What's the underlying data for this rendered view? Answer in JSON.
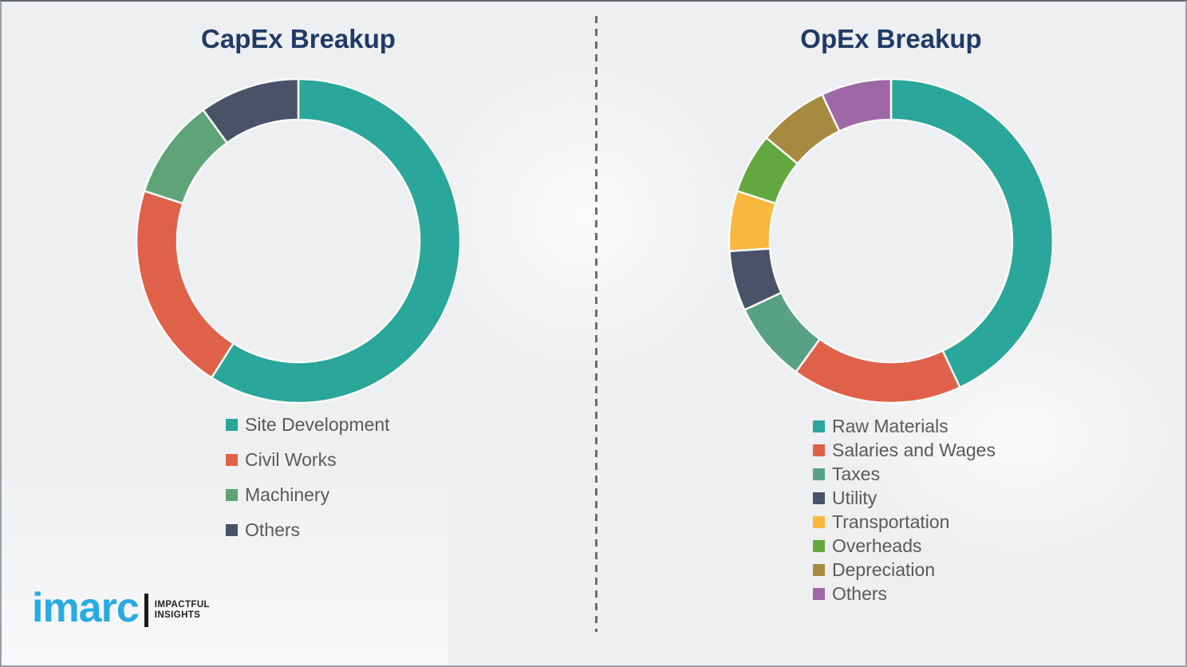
{
  "page": {
    "background_color": "#edeff0",
    "divider_color": "#6a6c6e",
    "title_color": "#203a66",
    "legend_text_color": "#5a5a5a",
    "slice_separator_color": "#fbfbf9"
  },
  "chart_data": [
    {
      "type": "pie",
      "variant": "donut",
      "title": "CapEx Breakup",
      "labels": [
        "Site Development",
        "Civil Works",
        "Machinery",
        "Others"
      ],
      "values": [
        59,
        21,
        10,
        10
      ],
      "unit": "%",
      "values_estimated_from_arc_angles": true,
      "colors": [
        "#2aa69a",
        "#e0614a",
        "#5ea477",
        "#4a5269"
      ],
      "start_angle_deg": 0,
      "direction": "clockwise",
      "legend_position": "below-left",
      "data_labels_shown": false
    },
    {
      "type": "pie",
      "variant": "donut",
      "title": "OpEx Breakup",
      "labels": [
        "Raw Materials",
        "Salaries and Wages",
        "Taxes",
        "Utility",
        "Transportation",
        "Overheads",
        "Depreciation",
        "Others"
      ],
      "values": [
        43,
        17,
        8,
        6,
        6,
        6,
        7,
        7
      ],
      "unit": "%",
      "values_estimated_from_arc_angles": true,
      "colors": [
        "#2aa69a",
        "#e0614a",
        "#58a185",
        "#4a5269",
        "#f7b83d",
        "#63a73f",
        "#a68a40",
        "#9e67a6"
      ],
      "start_angle_deg": 0,
      "direction": "clockwise",
      "legend_position": "below-left",
      "data_labels_shown": false
    }
  ],
  "logo": {
    "brand": "imarc",
    "brand_color": "#29abe2",
    "tagline_line1": "IMPACTFUL",
    "tagline_line2": "INSIGHTS"
  }
}
